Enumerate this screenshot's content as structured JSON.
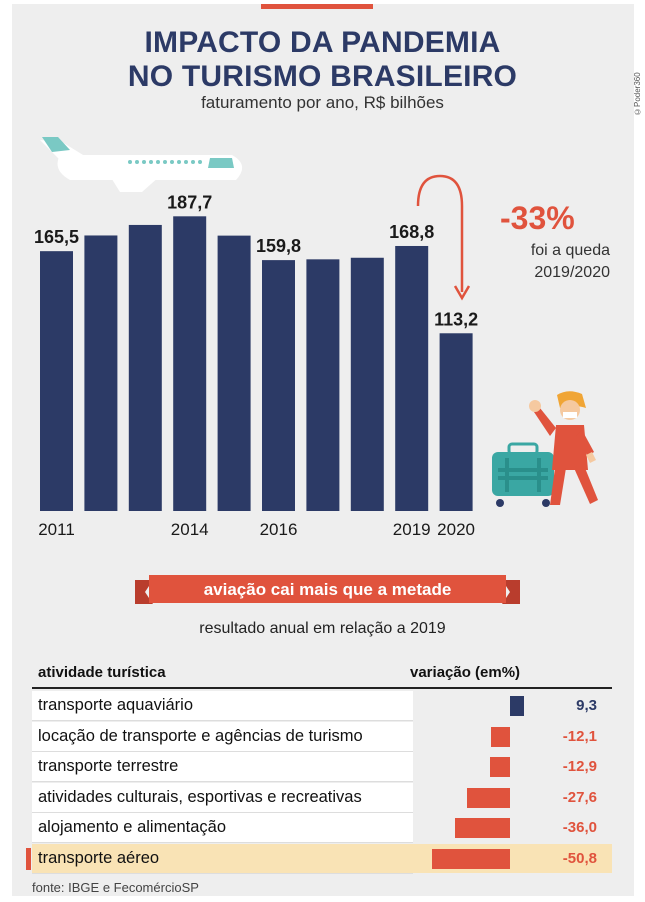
{
  "credit": "©Poder360",
  "title_line1": "IMPACTO DA PANDEMIA",
  "title_line2": "NO TURISMO BRASILEIRO",
  "subtitle": "faturamento por ano, R$ bilhões",
  "colors": {
    "navy": "#2c3a66",
    "red": "#e0533d",
    "highlight": "#f9e3b5",
    "panel": "#eeeeee"
  },
  "chart_data": [
    {
      "type": "bar",
      "title": "IMPACTO DA PANDEMIA NO TURISMO BRASILEIRO",
      "subtitle": "faturamento por ano, R$ bilhões",
      "categories": [
        "2011",
        "2012",
        "2013",
        "2014",
        "2015",
        "2016",
        "2017",
        "2018",
        "2019",
        "2020"
      ],
      "values": [
        165.5,
        175.5,
        182.2,
        187.7,
        175.4,
        159.8,
        160.3,
        161.3,
        168.8,
        113.2
      ],
      "labeled": [
        "165,5",
        null,
        null,
        "187,7",
        null,
        "159,8",
        null,
        null,
        "168,8",
        "113,2"
      ],
      "tick_labels": [
        "2011",
        "",
        "",
        "2014",
        "",
        "2016",
        "",
        "",
        "2019",
        "2020"
      ],
      "ylabel": "R$ bilhões",
      "ylim": [
        0,
        190
      ],
      "annotation": {
        "value": "-33%",
        "text_line1": "foi a queda",
        "text_line2": "2019/2020"
      }
    },
    {
      "type": "bar",
      "orientation": "horizontal",
      "title": "aviação cai mais que a metade",
      "subtitle": "resultado anual em relação a 2019",
      "col_head_left": "atividade turística",
      "col_head_right": "variação (em%)",
      "categories": [
        "transporte aquaviário",
        "locação de transporte e agências de turismo",
        "transporte terrestre",
        "atividades culturais, esportivas e recreativas",
        "alojamento e alimentação",
        "transporte aéreo"
      ],
      "values": [
        9.3,
        -12.1,
        -12.9,
        -27.6,
        -36.0,
        -50.8
      ],
      "value_labels": [
        "9,3",
        "-12,1",
        "-12,9",
        "-27,6",
        "-36,0",
        "-50,8"
      ],
      "highlighted": "transporte aéreo"
    }
  ],
  "source": "fonte: IBGE e FecomércioSP"
}
